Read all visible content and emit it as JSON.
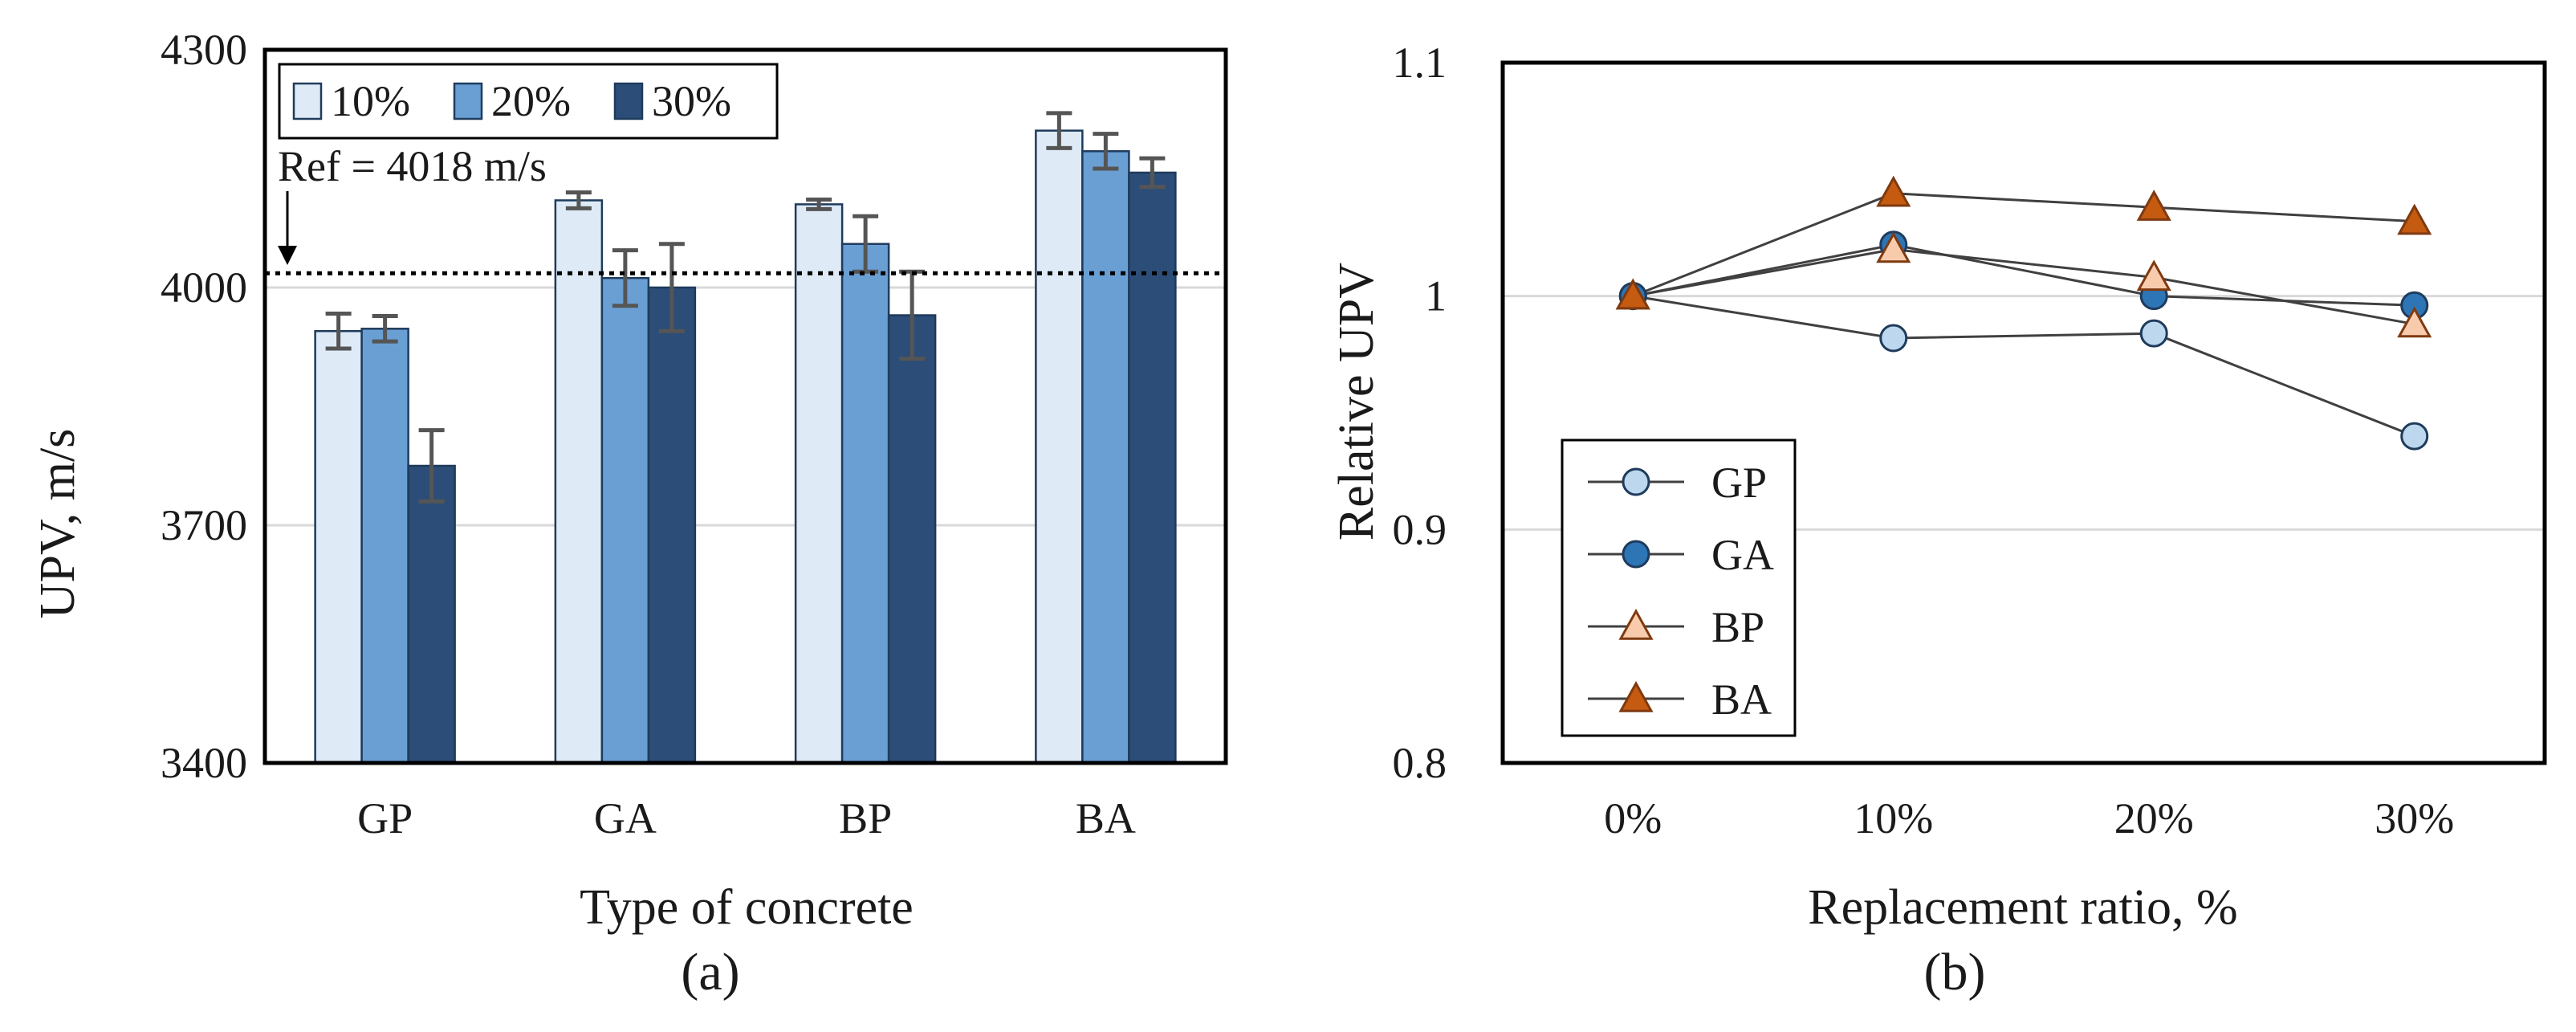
{
  "figure": {
    "panel_labels": [
      "(a)",
      "(b)"
    ]
  },
  "chart_data": [
    {
      "type": "bar",
      "panel": "(a)",
      "title": "",
      "xlabel": "Type of concrete",
      "ylabel": "UPV, m/s",
      "categories": [
        "GP",
        "GA",
        "BP",
        "BA"
      ],
      "ylim": [
        3400,
        4300
      ],
      "yticks": [
        3400,
        3700,
        4000,
        4300
      ],
      "grid": true,
      "legend_position": "top-left",
      "series": [
        {
          "name": "10%",
          "color": "#deebf7",
          "values": [
            3945,
            4110,
            4105,
            4198
          ],
          "errors": [
            22,
            10,
            6,
            22
          ]
        },
        {
          "name": "20%",
          "color": "#6a9fd4",
          "values": [
            3948,
            4012,
            4055,
            4172
          ],
          "errors": [
            16,
            35,
            35,
            22
          ]
        },
        {
          "name": "30%",
          "color": "#2b4d78",
          "values": [
            3775,
            4000,
            3965,
            4145
          ],
          "errors": [
            45,
            55,
            55,
            18
          ]
        }
      ],
      "reference": {
        "value": 4018,
        "label": "Ref = 4018 m/s",
        "style": "dotted"
      }
    },
    {
      "type": "line",
      "panel": "(b)",
      "title": "",
      "xlabel": "Replacement ratio, %",
      "ylabel": "Relative UPV",
      "x": [
        "0%",
        "10%",
        "20%",
        "30%"
      ],
      "ylim": [
        0.8,
        1.1
      ],
      "yticks": [
        "0.8",
        "0.9",
        "1",
        "1.1"
      ],
      "grid": true,
      "legend_position": "bottom-left",
      "series": [
        {
          "name": "GP",
          "marker": "circle",
          "color": "#bdd7ee",
          "values": [
            1.0,
            0.982,
            0.984,
            0.94
          ]
        },
        {
          "name": "GA",
          "marker": "circle",
          "color": "#2e75b6",
          "values": [
            1.0,
            1.022,
            1.0,
            0.996
          ]
        },
        {
          "name": "BP",
          "marker": "triangle",
          "color": "#f8cbad",
          "values": [
            1.0,
            1.02,
            1.008,
            0.988
          ]
        },
        {
          "name": "BA",
          "marker": "triangle",
          "color": "#c55a11",
          "values": [
            1.0,
            1.044,
            1.038,
            1.032
          ]
        }
      ]
    }
  ]
}
